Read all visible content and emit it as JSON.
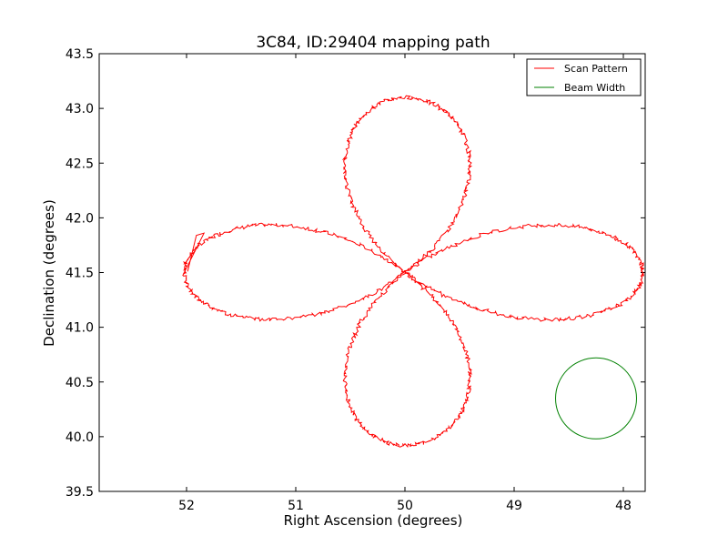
{
  "chart_data": {
    "type": "line",
    "title": "3C84, ID:29404 mapping path",
    "xlabel": "Right Ascension (degrees)",
    "ylabel": "Declination (degrees)",
    "xlim": [
      52.8,
      47.8
    ],
    "ylim": [
      39.5,
      43.5
    ],
    "x_inverted": true,
    "x_ticks": [
      52,
      51,
      50,
      49,
      48
    ],
    "x_tick_labels": [
      "52",
      "51",
      "50",
      "49",
      "48"
    ],
    "y_ticks": [
      39.5,
      40.0,
      40.5,
      41.0,
      41.5,
      42.0,
      42.5,
      43.0,
      43.5
    ],
    "y_tick_labels": [
      "39.5",
      "40.0",
      "40.5",
      "41.0",
      "41.5",
      "42.0",
      "42.5",
      "43.0",
      "43.5"
    ],
    "grid": false,
    "legend_position": "top-right",
    "series": [
      {
        "name": "Scan Pattern",
        "color": "#ff0000",
        "shape": "four-petal rose centered at (50.0, 41.5)",
        "center": [
          50.0,
          41.5
        ],
        "petal_extent": {
          "north": 43.1,
          "south": 39.92,
          "east_RA": 47.82,
          "west_RA": 52.02
        },
        "start_segment": [
          [
            51.99,
            41.51
          ],
          [
            51.91,
            41.84
          ],
          [
            51.84,
            41.86
          ]
        ]
      },
      {
        "name": "Beam Width",
        "color": "#008000",
        "shape": "circle",
        "center": [
          48.25,
          40.35
        ],
        "diameter_deg": 0.74
      }
    ]
  }
}
